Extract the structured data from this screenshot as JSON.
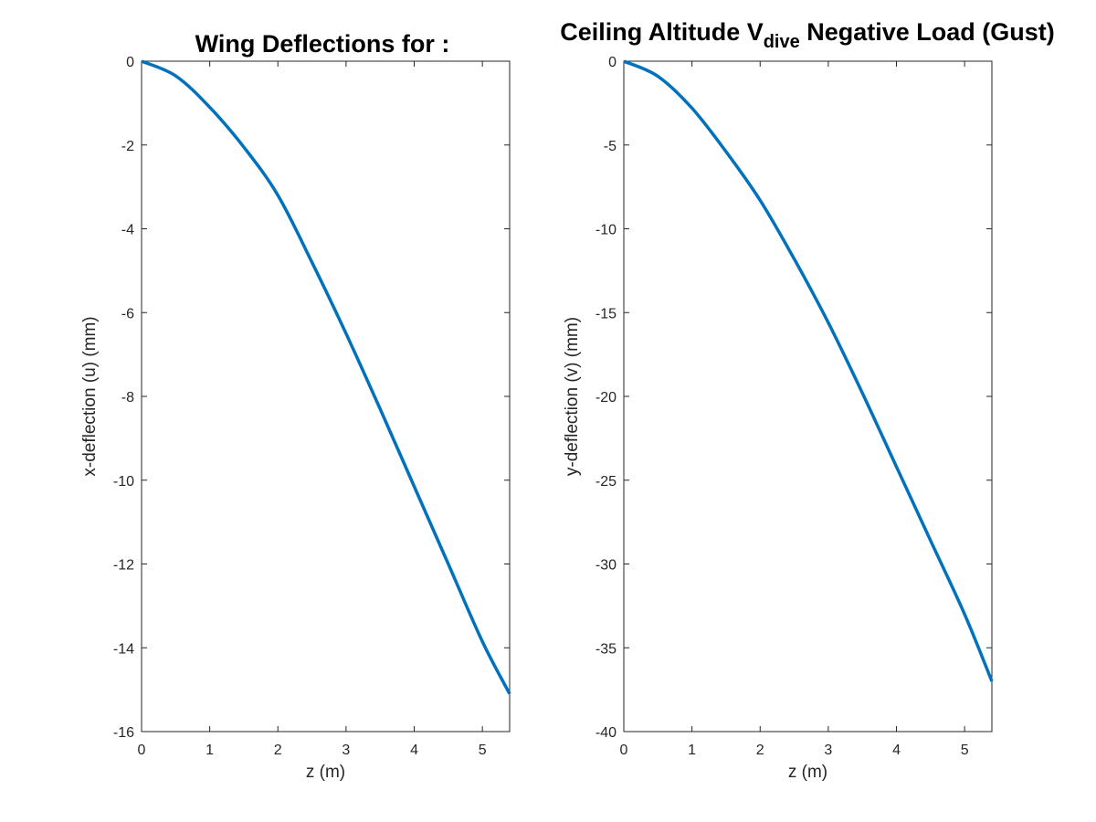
{
  "figure": {
    "title_left": "Wing Deflections for :",
    "title_right": {
      "pre": "Ceiling Altitude V",
      "sub": "dive",
      "post": " Negative Load (Gust)"
    }
  },
  "colors": {
    "line": "#0072BD",
    "axes": "#262626",
    "background": "#ffffff"
  },
  "chart_data": [
    {
      "type": "line",
      "xlabel": "z (m)",
      "ylabel": "x-deflection (u) (mm)",
      "xlim": [
        0,
        5.4
      ],
      "ylim": [
        -16,
        0
      ],
      "xticks": [
        0,
        1,
        2,
        3,
        4,
        5
      ],
      "yticks": [
        -16,
        -14,
        -12,
        -10,
        -8,
        -6,
        -4,
        -2,
        0
      ],
      "grid": false,
      "series": [
        {
          "x": [
            0,
            0.5,
            1,
            1.5,
            2,
            2.5,
            3,
            3.5,
            4,
            4.5,
            5,
            5.4
          ],
          "y": [
            0,
            -0.35,
            -1.1,
            -2.05,
            -3.2,
            -4.8,
            -6.5,
            -8.3,
            -10.15,
            -12.0,
            -13.85,
            -15.1
          ]
        }
      ]
    },
    {
      "type": "line",
      "xlabel": "z (m)",
      "ylabel": "y-deflection (v) (mm)",
      "xlim": [
        0,
        5.4
      ],
      "ylim": [
        -40,
        0
      ],
      "xticks": [
        0,
        1,
        2,
        3,
        4,
        5
      ],
      "yticks": [
        -40,
        -35,
        -30,
        -25,
        -20,
        -15,
        -10,
        -5,
        0
      ],
      "grid": false,
      "series": [
        {
          "x": [
            0,
            0.5,
            1,
            1.5,
            2,
            2.5,
            3,
            3.5,
            4,
            4.5,
            5,
            5.4
          ],
          "y": [
            0,
            -0.9,
            -2.8,
            -5.4,
            -8.3,
            -11.8,
            -15.6,
            -19.8,
            -24.2,
            -28.6,
            -33.0,
            -37.0
          ]
        }
      ]
    }
  ]
}
